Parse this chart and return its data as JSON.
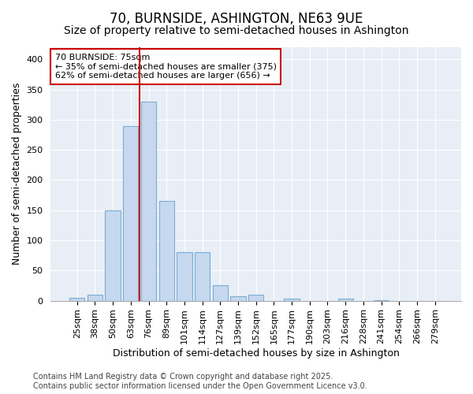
{
  "title": "70, BURNSIDE, ASHINGTON, NE63 9UE",
  "subtitle": "Size of property relative to semi-detached houses in Ashington",
  "xlabel": "Distribution of semi-detached houses by size in Ashington",
  "ylabel": "Number of semi-detached properties",
  "categories": [
    "25sqm",
    "38sqm",
    "50sqm",
    "63sqm",
    "76sqm",
    "89sqm",
    "101sqm",
    "114sqm",
    "127sqm",
    "139sqm",
    "152sqm",
    "165sqm",
    "177sqm",
    "190sqm",
    "203sqm",
    "216sqm",
    "228sqm",
    "241sqm",
    "254sqm",
    "266sqm",
    "279sqm"
  ],
  "values": [
    5,
    10,
    150,
    290,
    330,
    165,
    80,
    80,
    25,
    7,
    10,
    0,
    3,
    0,
    0,
    3,
    0,
    1,
    0,
    0,
    0
  ],
  "bar_color": "#c5d8ee",
  "bar_edge_color": "#7aadd4",
  "vline_color": "#cc0000",
  "vline_index": 4,
  "annotation_title": "70 BURNSIDE: 75sqm",
  "annotation_line1": "← 35% of semi-detached houses are smaller (375)",
  "annotation_line2": "62% of semi-detached houses are larger (656) →",
  "annotation_box_edgecolor": "#cc0000",
  "ylim": [
    0,
    420
  ],
  "yticks": [
    0,
    50,
    100,
    150,
    200,
    250,
    300,
    350,
    400
  ],
  "bg_color": "#ffffff",
  "plot_bg_color": "#e8eef6",
  "title_fontsize": 12,
  "subtitle_fontsize": 10,
  "label_fontsize": 9,
  "tick_fontsize": 8,
  "annotation_fontsize": 8,
  "footer_fontsize": 7,
  "footer_line1": "Contains HM Land Registry data © Crown copyright and database right 2025.",
  "footer_line2": "Contains public sector information licensed under the Open Government Licence v3.0."
}
